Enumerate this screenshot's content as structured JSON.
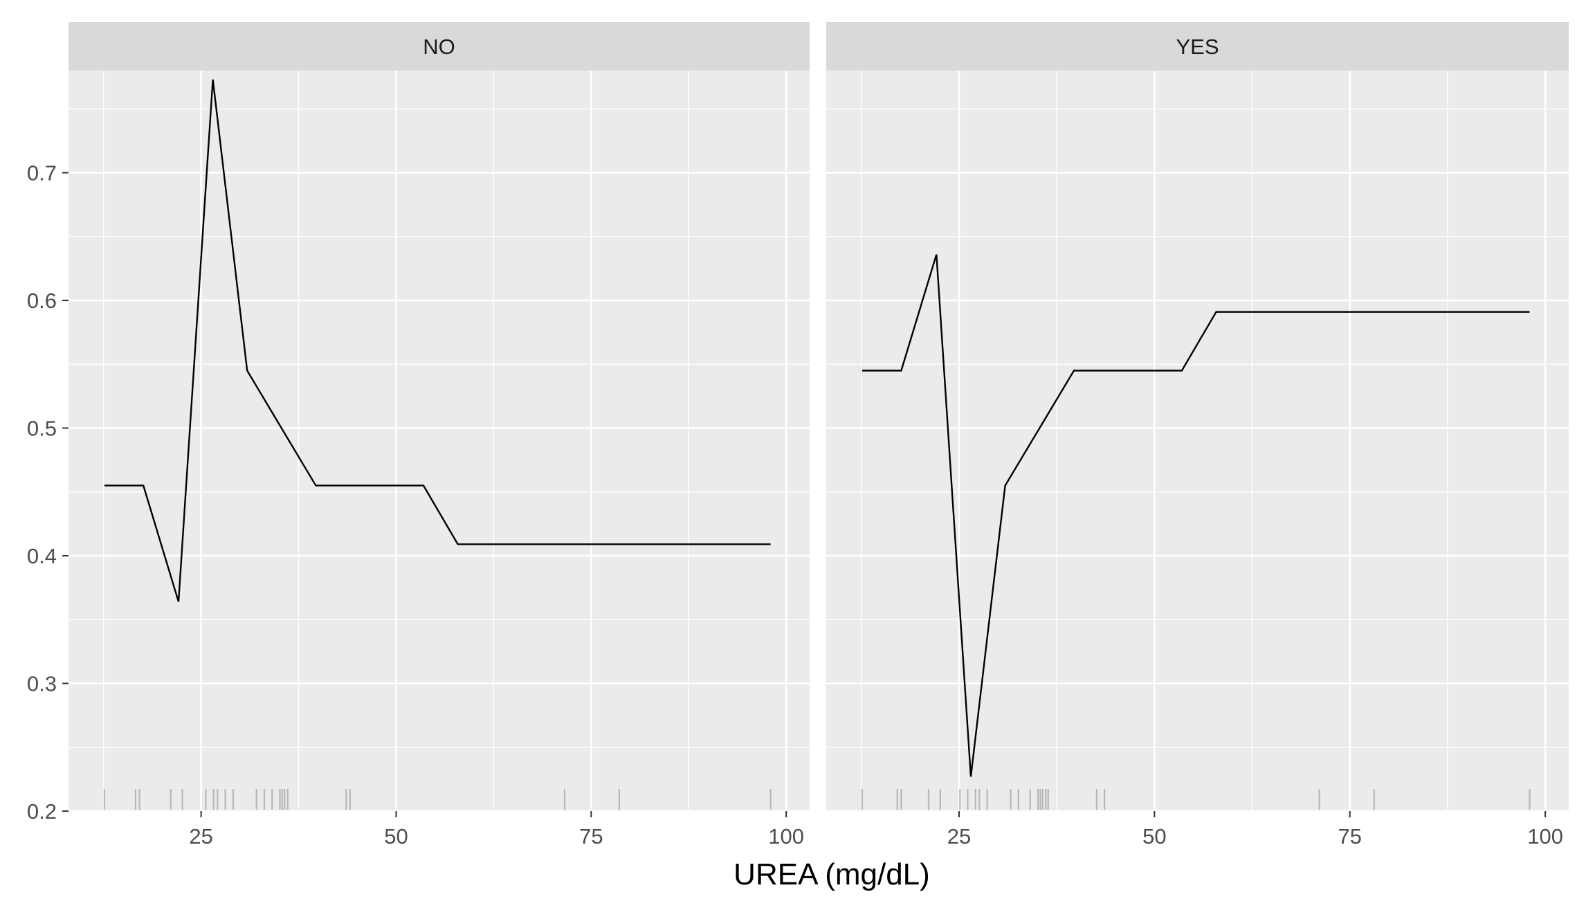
{
  "chart_data": {
    "type": "line",
    "xlabel": "UREA (mg/dL)",
    "ylabel": "",
    "xlim": [
      8,
      103
    ],
    "ylim": [
      0.2,
      0.78
    ],
    "x_ticks": [
      25,
      50,
      75,
      100
    ],
    "y_ticks": [
      0.2,
      0.3,
      0.4,
      0.5,
      0.6,
      0.7
    ],
    "y_tick_labels": [
      "0.2",
      "0.3",
      "0.4",
      "0.5",
      "0.6",
      "0.7"
    ],
    "grid": true,
    "panels": [
      {
        "strip": "NO",
        "x": [
          12.6,
          17.6,
          22.1,
          26.5,
          30.9,
          35.3,
          39.7,
          53.5,
          57.9,
          98.0
        ],
        "y": [
          0.455,
          0.455,
          0.364,
          0.773,
          0.545,
          0.5,
          0.455,
          0.455,
          0.409,
          0.409
        ],
        "rug": [
          12.6,
          16.6,
          17.1,
          21.1,
          22.6,
          25.6,
          26.6,
          27.1,
          28.1,
          29.1,
          32.1,
          33.1,
          34.1,
          35.1,
          35.4,
          35.7,
          36.1,
          43.6,
          44.1,
          71.6,
          78.6,
          98.0
        ]
      },
      {
        "strip": "YES",
        "x": [
          12.6,
          17.6,
          22.1,
          26.5,
          30.9,
          35.3,
          39.7,
          53.5,
          57.9,
          98.0
        ],
        "y": [
          0.545,
          0.545,
          0.636,
          0.227,
          0.455,
          0.5,
          0.545,
          0.545,
          0.591,
          0.591
        ],
        "rug": [
          12.6,
          17.1,
          17.6,
          21.1,
          22.6,
          25.1,
          26.1,
          27.1,
          27.6,
          28.6,
          31.6,
          32.6,
          34.1,
          35.1,
          35.4,
          35.7,
          36.1,
          36.4,
          42.6,
          43.6,
          71.1,
          78.1,
          98.0
        ]
      }
    ]
  }
}
